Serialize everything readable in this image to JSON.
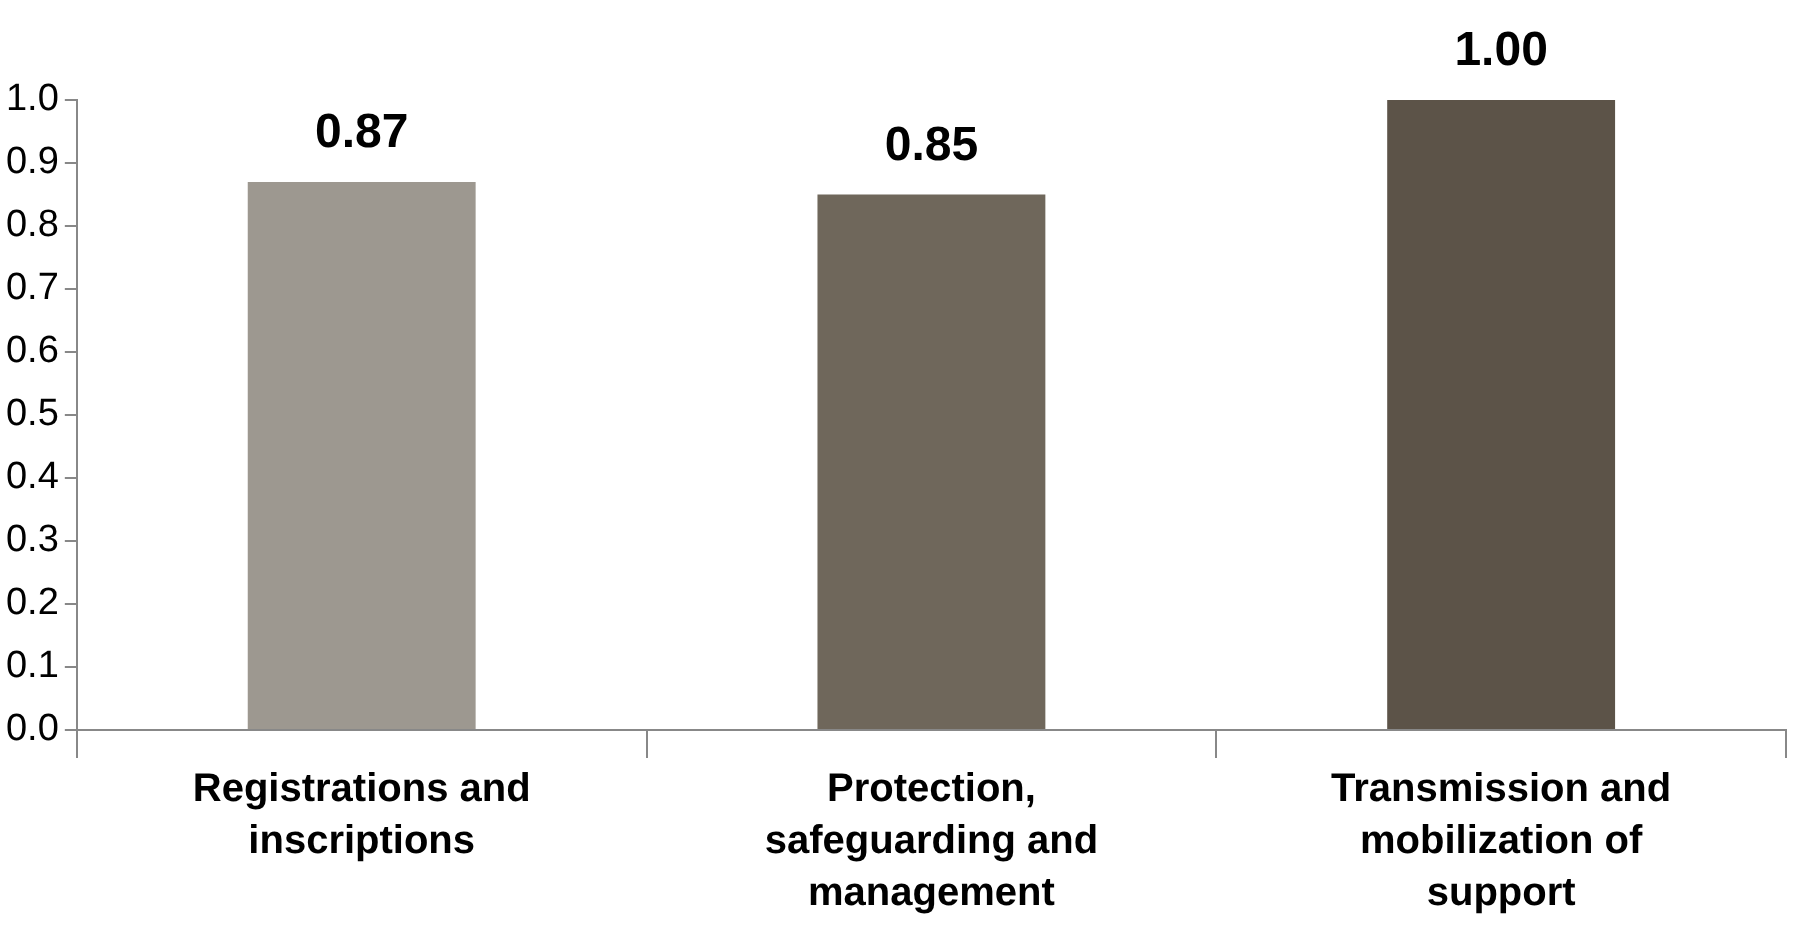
{
  "chart_data": {
    "type": "bar",
    "categories": [
      "Registrations and inscriptions",
      "Protection, safeguarding and management",
      "Transmission and mobilization of support"
    ],
    "values": [
      0.87,
      0.85,
      1.0
    ],
    "value_labels": [
      "0.87",
      "0.85",
      "1.00"
    ],
    "colors": [
      "#9d9890",
      "#6f675b",
      "#5c5348"
    ],
    "ylim": [
      0,
      1
    ],
    "yticks": [
      {
        "value": 0,
        "label": "0.0"
      },
      {
        "value": 0.1,
        "label": "0.1"
      },
      {
        "value": 0.2,
        "label": "0.2"
      },
      {
        "value": 0.3,
        "label": "0.3"
      },
      {
        "value": 0.4,
        "label": "0.4"
      },
      {
        "value": 0.5,
        "label": "0.5"
      },
      {
        "value": 0.6,
        "label": "0.6"
      },
      {
        "value": 0.7,
        "label": "0.7"
      },
      {
        "value": 0.8,
        "label": "0.8"
      },
      {
        "value": 0.9,
        "label": "0.9"
      },
      {
        "value": 1,
        "label": "1.0"
      }
    ],
    "grid": false,
    "legend": false
  }
}
